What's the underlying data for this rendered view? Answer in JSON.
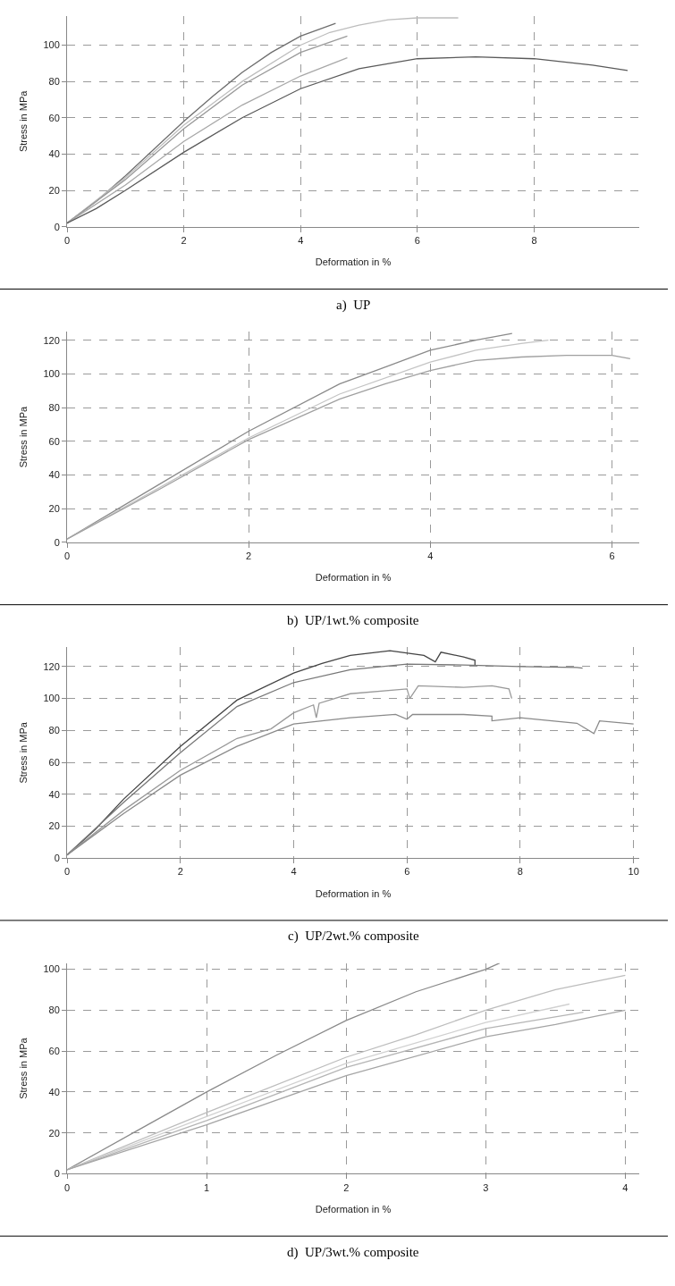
{
  "chart_data": [
    {
      "type": "line",
      "title": "a)  UP",
      "xlabel": "Deformation in %",
      "ylabel": "Stress in MPa",
      "xlim": [
        0,
        9.8
      ],
      "ylim": [
        0,
        116
      ],
      "xticks": [
        0,
        2,
        4,
        6,
        8
      ],
      "yticks": [
        0,
        20,
        40,
        60,
        80,
        100
      ],
      "grid": true,
      "line_style": "solid",
      "series": [
        {
          "color": "#6e6e6e",
          "x": [
            0,
            0.5,
            1,
            1.5,
            2,
            2.5,
            3,
            3.5,
            4,
            4.6
          ],
          "values": [
            2,
            14,
            28,
            43,
            58,
            72,
            85,
            96,
            105,
            112
          ]
        },
        {
          "color": "#bdbdbd",
          "x": [
            0,
            1,
            2,
            3,
            4,
            4.5,
            5,
            5.5,
            6,
            6.7
          ],
          "values": [
            2,
            27,
            56,
            80,
            100,
            107,
            111,
            114,
            115,
            115
          ]
        },
        {
          "color": "#9a9a9a",
          "x": [
            0,
            1,
            2,
            3,
            4,
            4.8
          ],
          "values": [
            2,
            26,
            54,
            78,
            96,
            105
          ]
        },
        {
          "color": "#a8a8a8",
          "x": [
            0,
            1,
            2,
            3,
            4,
            4.8
          ],
          "values": [
            2,
            23,
            47,
            67,
            83,
            93
          ]
        },
        {
          "color": "#5a5a5a",
          "x": [
            0,
            0.5,
            1,
            2,
            3,
            4,
            5,
            6,
            7,
            8,
            9,
            9.6
          ],
          "values": [
            2,
            10,
            20,
            41,
            60,
            76,
            87,
            92.5,
            93.5,
            92.5,
            89,
            86
          ]
        }
      ]
    },
    {
      "type": "line",
      "title": "b)  UP/1wt.% composite",
      "xlabel": "Deformation in %",
      "ylabel": "Stress in MPa",
      "xlim": [
        0,
        6.3
      ],
      "ylim": [
        0,
        125
      ],
      "xticks": [
        0,
        2,
        4,
        6
      ],
      "yticks": [
        0,
        20,
        40,
        60,
        80,
        100,
        120
      ],
      "grid": true,
      "line_style": "solid",
      "series": [
        {
          "color": "#8a8a8a",
          "x": [
            0,
            1,
            2,
            3,
            3.5,
            4,
            4.5,
            4.9
          ],
          "values": [
            2,
            34,
            66,
            94,
            104,
            114,
            120,
            124
          ]
        },
        {
          "color": "#c4c4c4",
          "x": [
            0,
            1,
            2,
            3,
            4,
            4.5,
            5,
            5.3
          ],
          "values": [
            2,
            32,
            62,
            88,
            107,
            114,
            118,
            120
          ]
        },
        {
          "color": "#a0a0a0",
          "x": [
            0,
            1,
            2,
            3,
            3.5,
            4,
            4.5,
            5,
            5.5,
            6,
            6.2
          ],
          "values": [
            2,
            31,
            61,
            85,
            94,
            102,
            108,
            110,
            111,
            111,
            109
          ]
        }
      ]
    },
    {
      "type": "line",
      "title": "c)  UP/2wt.% composite",
      "xlabel": "Deformation in %",
      "ylabel": "Stress in MPa",
      "xlim": [
        0,
        10.1
      ],
      "ylim": [
        0,
        132
      ],
      "xticks": [
        0,
        2,
        4,
        6,
        8,
        10
      ],
      "yticks": [
        0,
        20,
        40,
        60,
        80,
        100,
        120
      ],
      "grid": true,
      "line_style": "solid",
      "series": [
        {
          "color": "#444444",
          "x": [
            0,
            0.5,
            1,
            2,
            3,
            4,
            4.5,
            5,
            5.7,
            6.3,
            6.5,
            6.6,
            7,
            7.2,
            7.2
          ],
          "values": [
            2,
            18,
            37,
            70,
            99,
            116,
            122,
            127,
            130,
            127,
            123,
            129,
            126,
            124,
            121
          ]
        },
        {
          "color": "#777777",
          "x": [
            0,
            1,
            2,
            3,
            4,
            5,
            6,
            7,
            8,
            9,
            9.1
          ],
          "values": [
            2,
            35,
            66,
            95,
            110,
            118,
            121.5,
            121,
            120,
            119.5,
            119
          ]
        },
        {
          "color": "#9a9a9a",
          "x": [
            0,
            1,
            2,
            3,
            3.6,
            4,
            4.35,
            4.4,
            4.45,
            5,
            6,
            6.05,
            6.2,
            7,
            7.5,
            7.8,
            7.85
          ],
          "values": [
            2,
            30,
            55,
            75,
            81,
            91,
            96,
            88,
            97,
            103,
            106,
            100,
            108,
            107,
            108,
            106,
            100
          ]
        },
        {
          "color": "#8a8a8a",
          "x": [
            0,
            1,
            2,
            3,
            4,
            5,
            5.8,
            6,
            6.1,
            7,
            7.5,
            7.5,
            8,
            9,
            9.3,
            9.4,
            10
          ],
          "values": [
            2,
            28,
            52,
            70,
            84,
            88,
            90,
            87,
            90,
            90,
            89,
            86,
            88,
            84.5,
            78,
            86,
            84
          ]
        }
      ]
    },
    {
      "type": "line",
      "title": "d)  UP/3wt.% composite",
      "xlabel": "Deformation in %",
      "ylabel": "Stress in MPa",
      "xlim": [
        0,
        4.1
      ],
      "ylim": [
        0,
        103
      ],
      "xticks": [
        0,
        1,
        2,
        3,
        4
      ],
      "yticks": [
        0,
        20,
        40,
        60,
        80,
        100
      ],
      "grid": true,
      "line_style": "solid",
      "series": [
        {
          "color": "#8a8a8a",
          "x": [
            0,
            0.5,
            1,
            1.5,
            2,
            2.5,
            3,
            3.1
          ],
          "values": [
            2,
            21,
            40,
            58,
            75,
            89,
            100,
            103
          ]
        },
        {
          "color": "#bdbdbd",
          "x": [
            0,
            1,
            2,
            2.5,
            3,
            3.5,
            4
          ],
          "values": [
            2,
            30,
            57,
            68,
            80,
            90,
            97
          ]
        },
        {
          "color": "#d0d0d0",
          "x": [
            0,
            1,
            2,
            3,
            3.6
          ],
          "values": [
            2,
            28,
            54,
            74,
            83
          ]
        },
        {
          "color": "#b5b5b5",
          "x": [
            0,
            1,
            2,
            3,
            3.7
          ],
          "values": [
            2,
            26,
            52,
            71,
            79
          ]
        },
        {
          "color": "#a5a5a5",
          "x": [
            0,
            1,
            2,
            3,
            3.5,
            4
          ],
          "values": [
            2,
            24,
            48,
            67,
            73,
            80
          ]
        }
      ]
    }
  ]
}
